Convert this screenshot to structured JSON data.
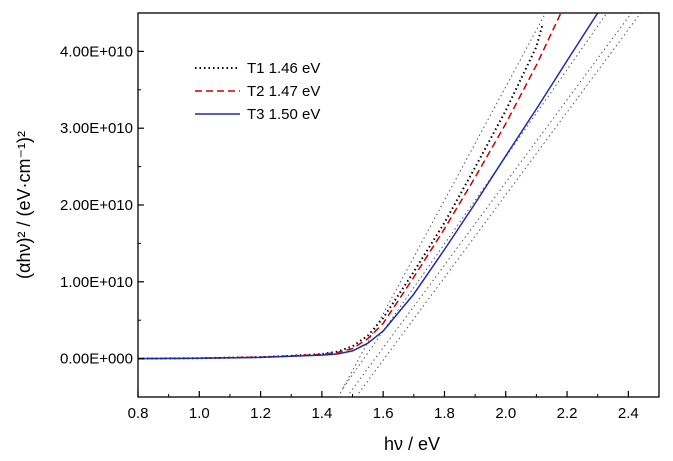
{
  "chart_data": {
    "type": "line",
    "title": "",
    "xlabel": "hν / eV",
    "ylabel": "(αhν)² / (eV·cm⁻¹)²",
    "xlim": [
      0.8,
      2.5
    ],
    "ylim": [
      -5000000000.0,
      45000000000.0
    ],
    "xticks": [
      0.8,
      1.0,
      1.2,
      1.4,
      1.6,
      1.8,
      2.0,
      2.2,
      2.4
    ],
    "xtick_labels": [
      "0.8",
      "1.0",
      "1.2",
      "1.4",
      "1.6",
      "1.8",
      "2.0",
      "2.2",
      "2.4"
    ],
    "yticks": [
      0,
      10000000000.0,
      20000000000.0,
      30000000000.0,
      40000000000.0
    ],
    "ytick_labels": [
      "0.00E+000",
      "1.00E+010",
      "2.00E+010",
      "3.00E+010",
      "4.00E+010"
    ],
    "legend_position": "top-left",
    "grid": false,
    "series": [
      {
        "name": "T1 1.46 eV",
        "style": "dotted",
        "color": "#000000",
        "x": [
          0.8,
          1.0,
          1.2,
          1.3,
          1.4,
          1.45,
          1.5,
          1.55,
          1.6,
          1.7,
          1.8,
          1.9,
          2.0,
          2.1,
          2.12
        ],
        "y": [
          0,
          50000000.0,
          200000000.0,
          350000000.0,
          600000000.0,
          900000000.0,
          1600000000.0,
          3000000000.0,
          5300000000.0,
          11300000000.0,
          17700000000.0,
          24900000000.0,
          32300000000.0,
          40600000000.0,
          43500000000.0
        ]
      },
      {
        "name": "T2 1.47 eV",
        "style": "dashed",
        "color": "#cc0000",
        "x": [
          0.8,
          1.0,
          1.2,
          1.3,
          1.4,
          1.45,
          1.5,
          1.55,
          1.6,
          1.7,
          1.8,
          1.9,
          2.0,
          2.1,
          2.18
        ],
        "y": [
          0,
          50000000.0,
          200000000.0,
          350000000.0,
          550000000.0,
          800000000.0,
          1300000000.0,
          2600000000.0,
          4600000000.0,
          10600000000.0,
          16900000000.0,
          23600000000.0,
          30600000000.0,
          38200000000.0,
          45000000000.0
        ]
      },
      {
        "name": "T3 1.50 eV",
        "style": "solid",
        "color": "#1f2aa8",
        "x": [
          0.8,
          1.0,
          1.2,
          1.3,
          1.4,
          1.45,
          1.5,
          1.55,
          1.6,
          1.7,
          1.8,
          1.9,
          2.0,
          2.1,
          2.2,
          2.3
        ],
        "y": [
          0,
          50000000.0,
          150000000.0,
          300000000.0,
          450000000.0,
          600000000.0,
          1000000000.0,
          2000000000.0,
          3600000000.0,
          8400000000.0,
          14200000000.0,
          20200000000.0,
          26400000000.0,
          32500000000.0,
          38800000000.0,
          45000000000.0
        ]
      }
    ],
    "fit_lines": [
      {
        "x": [
          1.46,
          2.13
        ],
        "y": [
          -4500000000.0,
          45000000000.0
        ],
        "style": "dotted",
        "color": "#555555"
      },
      {
        "x": [
          1.47,
          2.33
        ],
        "y": [
          -3800000000.0,
          45000000000.0
        ],
        "style": "dotted",
        "color": "#555555"
      },
      {
        "x": [
          1.49,
          2.41
        ],
        "y": [
          -4500000000.0,
          45000000000.0
        ],
        "style": "dotted",
        "color": "#555555"
      },
      {
        "x": [
          1.52,
          2.44
        ],
        "y": [
          -4500000000.0,
          45000000000.0
        ],
        "style": "dotted",
        "color": "#555555"
      }
    ]
  }
}
